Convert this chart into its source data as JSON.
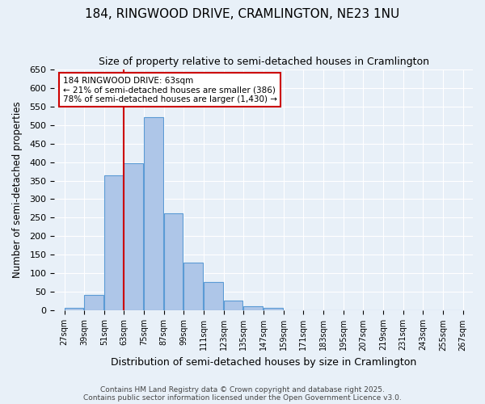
{
  "title": "184, RINGWOOD DRIVE, CRAMLINGTON, NE23 1NU",
  "subtitle": "Size of property relative to semi-detached houses in Cramlington",
  "xlabel": "Distribution of semi-detached houses by size in Cramlington",
  "ylabel": "Number of semi-detached properties",
  "bins": [
    27,
    39,
    51,
    63,
    75,
    87,
    99,
    111,
    123,
    135,
    147,
    159,
    171,
    183,
    195,
    207,
    219,
    231,
    243,
    255,
    267
  ],
  "counts": [
    8,
    42,
    365,
    397,
    520,
    263,
    130,
    76,
    28,
    11,
    8,
    0,
    0,
    0,
    0,
    0,
    0,
    0,
    0,
    2
  ],
  "bar_color": "#aec6e8",
  "bar_edge_color": "#5b9bd5",
  "property_size": 63,
  "property_label": "184 RINGWOOD DRIVE: 63sqm",
  "smaller_pct": "21%",
  "smaller_count": 386,
  "larger_pct": "78%",
  "larger_count": 1430,
  "vline_color": "#cc0000",
  "annotation_box_color": "#cc0000",
  "background_color": "#e8f0f8",
  "grid_color": "#ffffff",
  "ylim": [
    0,
    650
  ],
  "yticks": [
    0,
    50,
    100,
    150,
    200,
    250,
    300,
    350,
    400,
    450,
    500,
    550,
    600,
    650
  ],
  "tick_labels": [
    "27sqm",
    "39sqm",
    "51sqm",
    "63sqm",
    "75sqm",
    "87sqm",
    "99sqm",
    "111sqm",
    "123sqm",
    "135sqm",
    "147sqm",
    "159sqm",
    "171sqm",
    "183sqm",
    "195sqm",
    "207sqm",
    "219sqm",
    "231sqm",
    "243sqm",
    "255sqm",
    "267sqm"
  ],
  "footer_line1": "Contains HM Land Registry data © Crown copyright and database right 2025.",
  "footer_line2": "Contains public sector information licensed under the Open Government Licence v3.0."
}
